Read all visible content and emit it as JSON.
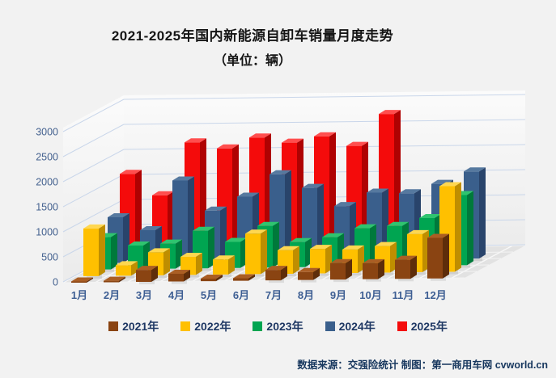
{
  "title": {
    "line1": "2021-2025年国内新能源自卸车销量月度走势",
    "line2": "（单位：辆）"
  },
  "chart_data": {
    "type": "bar",
    "projection": "3d",
    "unit": "辆",
    "title": "2021-2025年国内新能源自卸车销量月度走势（单位：辆）",
    "categories": [
      "1月",
      "2月",
      "3月",
      "4月",
      "5月",
      "6月",
      "7月",
      "8月",
      "9月",
      "10月",
      "11月",
      "12月"
    ],
    "series": [
      {
        "name": "2021年",
        "color": "#8a4412",
        "color_top": "#aa5e24",
        "color_side": "#5e2d0a",
        "values": [
          25,
          30,
          240,
          155,
          50,
          50,
          210,
          160,
          330,
          320,
          380,
          810
        ]
      },
      {
        "name": "2022年",
        "color": "#ffc000",
        "color_top": "#ffd750",
        "color_side": "#bf8e00",
        "values": [
          950,
          210,
          460,
          360,
          300,
          810,
          470,
          490,
          470,
          530,
          760,
          1710
        ]
      },
      {
        "name": "2023年",
        "color": "#00a551",
        "color_top": "#2fc46f",
        "color_side": "#00793b",
        "values": [
          645,
          470,
          500,
          750,
          520,
          830,
          500,
          590,
          760,
          800,
          950,
          1400
        ]
      },
      {
        "name": "2024年",
        "color": "#3a5f8c",
        "color_top": "#56799f",
        "color_side": "#29446b",
        "values": [
          910,
          645,
          1630,
          1020,
          1290,
          1730,
          1450,
          1080,
          1340,
          1320,
          1500,
          1740
        ]
      },
      {
        "name": "2025年",
        "color": "#f40b0b",
        "color_top": "#ff4e4e",
        "color_side": "#af0202",
        "values": [
          1645,
          1210,
          2260,
          2130,
          2340,
          2230,
          2350,
          2150,
          2780,
          null,
          null,
          null
        ]
      }
    ],
    "xlabel": "",
    "ylabel": "",
    "ylim": [
      0,
      3000
    ],
    "yticks": [
      0,
      500,
      1000,
      1500,
      2000,
      2500,
      3000
    ],
    "grid": true,
    "legend_position": "bottom"
  },
  "footer": {
    "text": "数据来源：交强险统计 制图：第一商用车网 cvworld.cn"
  }
}
